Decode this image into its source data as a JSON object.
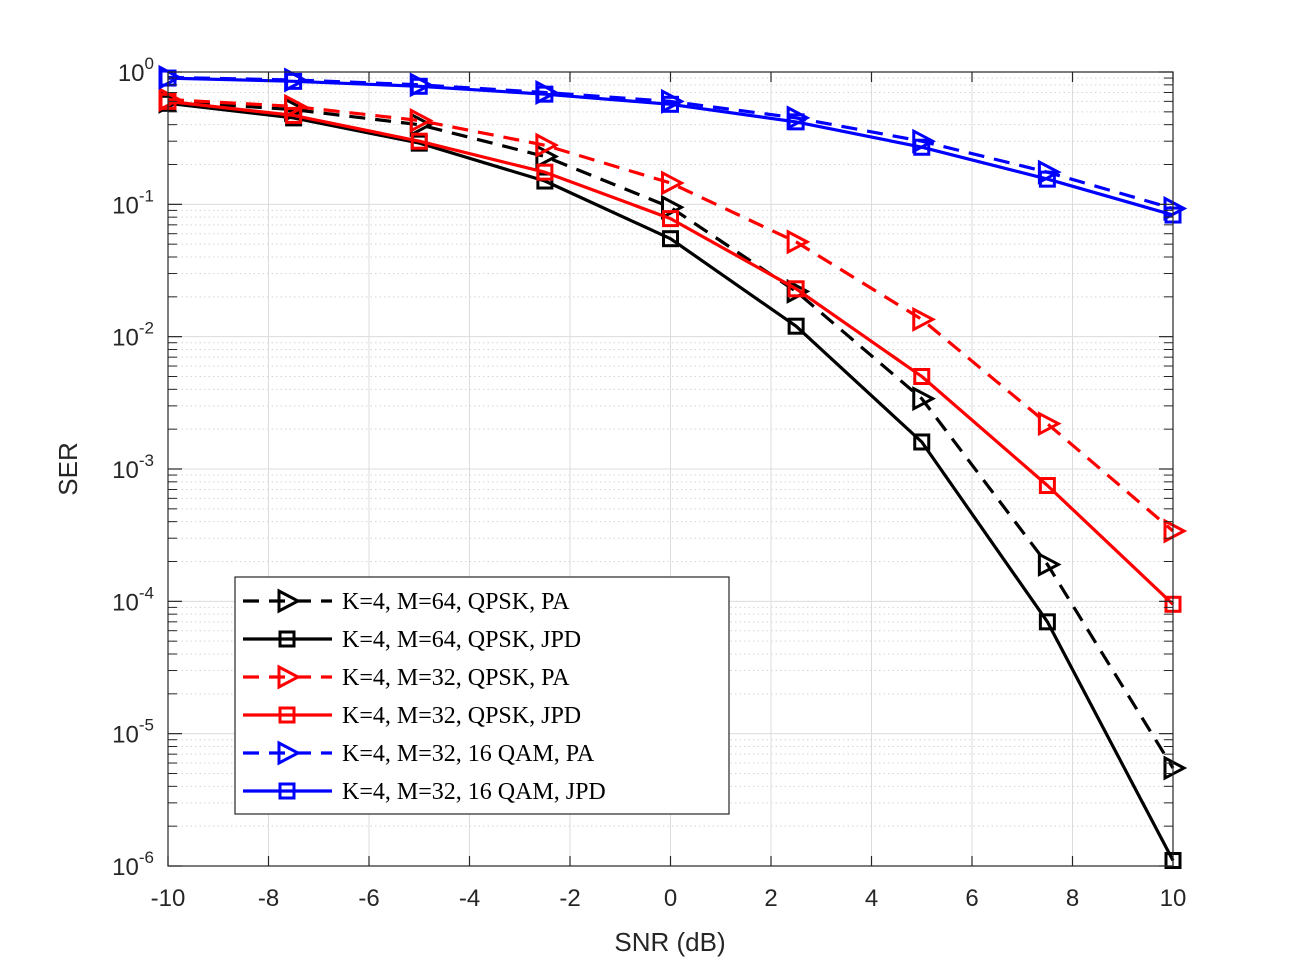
{
  "chart_data": {
    "type": "line",
    "title": "",
    "xlabel": "SNR (dB)",
    "ylabel": "SER",
    "xlim": [
      -10,
      10
    ],
    "ylim": [
      1e-06,
      1
    ],
    "yscale": "log",
    "grid": true,
    "minor_grid": true,
    "legend_position": "bottom-left",
    "x": [
      -10,
      -7.5,
      -5,
      -2.5,
      0,
      2.5,
      5,
      7.5,
      10
    ],
    "x_ticks": [
      -10,
      -8,
      -6,
      -4,
      -2,
      0,
      2,
      4,
      6,
      8,
      10
    ],
    "x_tick_labels": [
      "-10",
      "-8",
      "-6",
      "-4",
      "-2",
      "0",
      "2",
      "4",
      "6",
      "8",
      "10"
    ],
    "y_ticks": [
      {
        "base": "10",
        "exp": "0",
        "value": 1
      },
      {
        "base": "10",
        "exp": "-1",
        "value": 0.1
      },
      {
        "base": "10",
        "exp": "-2",
        "value": 0.01
      },
      {
        "base": "10",
        "exp": "-3",
        "value": 0.001
      },
      {
        "base": "10",
        "exp": "-4",
        "value": 0.0001
      },
      {
        "base": "10",
        "exp": "-5",
        "value": 1e-05
      },
      {
        "base": "10",
        "exp": "-6",
        "value": 1e-06
      }
    ],
    "series": [
      {
        "name": "K=4, M=64, QPSK, PA",
        "color": "#000000",
        "dash": true,
        "marker": "triangle-right",
        "values": [
          0.6,
          0.52,
          0.4,
          0.23,
          0.095,
          0.022,
          0.0034,
          0.00019,
          5.5e-06
        ]
      },
      {
        "name": "K=4, M=64, QPSK, JPD",
        "color": "#000000",
        "dash": false,
        "marker": "square",
        "values": [
          0.58,
          0.45,
          0.29,
          0.15,
          0.055,
          0.012,
          0.0016,
          7e-05,
          1.1e-06
        ]
      },
      {
        "name": "K=4, M=32, QPSK, PA",
        "color": "#ff0000",
        "dash": true,
        "marker": "triangle-right",
        "values": [
          0.62,
          0.55,
          0.43,
          0.28,
          0.145,
          0.052,
          0.0135,
          0.0022,
          0.00034
        ]
      },
      {
        "name": "K=4, M=32, QPSK, JPD",
        "color": "#ff0000",
        "dash": false,
        "marker": "square",
        "values": [
          0.6,
          0.47,
          0.3,
          0.175,
          0.078,
          0.023,
          0.005,
          0.00075,
          9.5e-05
        ]
      },
      {
        "name": "K=4, M=32, 16 QAM, PA",
        "color": "#0000ff",
        "dash": true,
        "marker": "triangle-right",
        "values": [
          0.91,
          0.87,
          0.8,
          0.7,
          0.6,
          0.45,
          0.3,
          0.175,
          0.093
        ]
      },
      {
        "name": "K=4, M=32, 16 QAM, JPD",
        "color": "#0000ff",
        "dash": false,
        "marker": "square",
        "values": [
          0.9,
          0.85,
          0.78,
          0.68,
          0.57,
          0.42,
          0.27,
          0.155,
          0.083
        ]
      }
    ]
  }
}
